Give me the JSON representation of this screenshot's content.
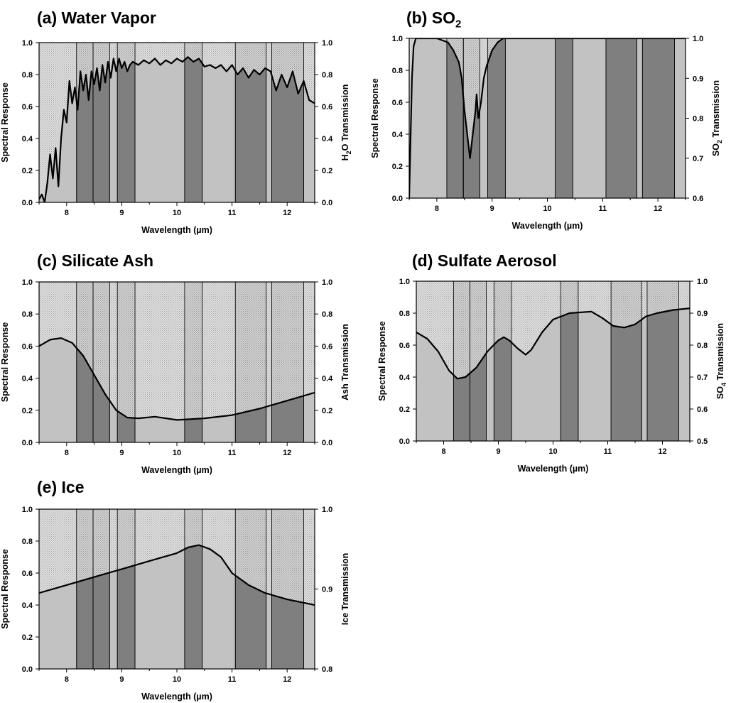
{
  "figure": {
    "bands_um": [
      [
        8.18,
        8.48
      ],
      [
        8.48,
        8.78
      ],
      [
        8.92,
        9.24
      ],
      [
        10.14,
        10.46
      ],
      [
        11.06,
        11.62
      ],
      [
        11.72,
        12.3
      ]
    ],
    "colors": {
      "band_light": "#c2c2c2",
      "band_dark": "#7f7f7f",
      "stipple": "#9a9a9a",
      "curve": "#000000"
    }
  },
  "chart_data": [
    {
      "type": "line",
      "letter": "(a)",
      "title_main": "Water Vapor",
      "title_sub": "",
      "xlabel": "Wavelength (µm)",
      "ylabel": "Spectral Response",
      "y2label_pre": "H",
      "y2label_sub": "2",
      "y2label_post": "O Transmission",
      "xlim": [
        7.5,
        12.5
      ],
      "xticks": [
        "8",
        "9",
        "10",
        "11",
        "12"
      ],
      "ylim": [
        0,
        1
      ],
      "yticks": [
        "0.0",
        "0.2",
        "0.4",
        "0.6",
        "0.8",
        "1.0"
      ],
      "y2lim": [
        0,
        1
      ],
      "y2ticks": [
        "0.0",
        "0.2",
        "0.4",
        "0.6",
        "0.8",
        "1.0"
      ],
      "series": [
        {
          "name": "H2O transmission",
          "x": [
            7.5,
            7.55,
            7.6,
            7.65,
            7.7,
            7.75,
            7.8,
            7.85,
            7.9,
            7.95,
            8.0,
            8.05,
            8.1,
            8.15,
            8.2,
            8.25,
            8.3,
            8.35,
            8.4,
            8.45,
            8.5,
            8.55,
            8.6,
            8.65,
            8.7,
            8.75,
            8.8,
            8.85,
            8.9,
            8.95,
            9.0,
            9.05,
            9.1,
            9.15,
            9.2,
            9.3,
            9.4,
            9.5,
            9.6,
            9.7,
            9.8,
            9.9,
            10.0,
            10.1,
            10.2,
            10.3,
            10.4,
            10.5,
            10.6,
            10.7,
            10.8,
            10.9,
            11.0,
            11.1,
            11.2,
            11.3,
            11.4,
            11.5,
            11.6,
            11.7,
            11.8,
            11.9,
            12.0,
            12.1,
            12.2,
            12.3,
            12.4,
            12.5
          ],
          "y": [
            0.02,
            0.05,
            0.0,
            0.12,
            0.3,
            0.15,
            0.34,
            0.1,
            0.4,
            0.58,
            0.5,
            0.76,
            0.62,
            0.72,
            0.58,
            0.82,
            0.7,
            0.8,
            0.64,
            0.82,
            0.74,
            0.84,
            0.7,
            0.86,
            0.75,
            0.88,
            0.78,
            0.9,
            0.82,
            0.9,
            0.84,
            0.88,
            0.82,
            0.86,
            0.88,
            0.86,
            0.89,
            0.87,
            0.9,
            0.86,
            0.89,
            0.87,
            0.9,
            0.88,
            0.91,
            0.88,
            0.9,
            0.85,
            0.86,
            0.84,
            0.86,
            0.82,
            0.86,
            0.8,
            0.84,
            0.78,
            0.83,
            0.8,
            0.84,
            0.82,
            0.7,
            0.8,
            0.72,
            0.82,
            0.68,
            0.76,
            0.64,
            0.62
          ]
        }
      ]
    },
    {
      "type": "line",
      "letter": "(b)",
      "title_main": "SO",
      "title_sub": "2",
      "xlabel": "Wavelength (µm)",
      "ylabel": "Spectral Response",
      "y2label_pre": "SO",
      "y2label_sub": "2",
      "y2label_post": " Transmission",
      "xlim": [
        7.5,
        12.5
      ],
      "xticks": [
        "8",
        "9",
        "10",
        "11",
        "12"
      ],
      "ylim": [
        0,
        1
      ],
      "yticks": [
        "0.0",
        "0.2",
        "0.4",
        "0.6",
        "0.8",
        "1.0"
      ],
      "y2lim": [
        0.6,
        1.0
      ],
      "y2ticks": [
        "0.6",
        "0.7",
        "0.8",
        "0.9",
        "1.0"
      ],
      "series": [
        {
          "name": "SO2 transmission",
          "x": [
            7.5,
            7.55,
            7.58,
            7.62,
            7.7,
            8.0,
            8.2,
            8.3,
            8.4,
            8.45,
            8.5,
            8.55,
            8.6,
            8.65,
            8.7,
            8.72,
            8.75,
            8.8,
            8.85,
            8.9,
            9.0,
            9.1,
            9.2,
            9.4,
            9.6,
            10.0,
            12.5
          ],
          "y": [
            0.6,
            0.9,
            0.98,
            1.0,
            1.0,
            1.0,
            0.99,
            0.97,
            0.94,
            0.9,
            0.82,
            0.76,
            0.7,
            0.76,
            0.82,
            0.86,
            0.8,
            0.84,
            0.9,
            0.93,
            0.97,
            0.99,
            1.0,
            1.0,
            1.0,
            1.0,
            1.0
          ]
        }
      ]
    },
    {
      "type": "line",
      "letter": "(c)",
      "title_main": "Silicate Ash",
      "title_sub": "",
      "xlabel": "Wavelength (µm)",
      "ylabel": "Spectral Response",
      "y2label_pre": "Ash Transmission",
      "y2label_sub": "",
      "y2label_post": "",
      "xlim": [
        7.5,
        12.5
      ],
      "xticks": [
        "8",
        "9",
        "10",
        "11",
        "12"
      ],
      "ylim": [
        0,
        1
      ],
      "yticks": [
        "0.0",
        "0.2",
        "0.4",
        "0.6",
        "0.8",
        "1.0"
      ],
      "y2lim": [
        0,
        1
      ],
      "y2ticks": [
        "0.0",
        "0.2",
        "0.4",
        "0.6",
        "0.8",
        "1.0"
      ],
      "series": [
        {
          "name": "Ash transmission",
          "x": [
            7.5,
            7.7,
            7.9,
            8.1,
            8.3,
            8.5,
            8.7,
            8.9,
            9.1,
            9.3,
            9.6,
            10.0,
            10.5,
            11.0,
            11.5,
            12.0,
            12.5
          ],
          "y": [
            0.6,
            0.64,
            0.65,
            0.62,
            0.54,
            0.42,
            0.3,
            0.2,
            0.155,
            0.15,
            0.16,
            0.14,
            0.15,
            0.17,
            0.21,
            0.26,
            0.31
          ]
        }
      ]
    },
    {
      "type": "line",
      "letter": "(d)",
      "title_main": "Sulfate Aerosol",
      "title_sub": "",
      "xlabel": "Wavelength (µm)",
      "ylabel": "Spectral Response",
      "y2label_pre": "SO",
      "y2label_sub": "4",
      "y2label_post": " Transmission",
      "xlim": [
        7.5,
        12.5
      ],
      "xticks": [
        "8",
        "9",
        "10",
        "11",
        "12"
      ],
      "ylim": [
        0,
        1
      ],
      "yticks": [
        "0.0",
        "0.2",
        "0.4",
        "0.6",
        "0.8",
        "1.0"
      ],
      "y2lim": [
        0.5,
        1.0
      ],
      "y2ticks": [
        "0.5",
        "0.6",
        "0.7",
        "0.8",
        "0.9",
        "1.0"
      ],
      "series": [
        {
          "name": "SO4 transmission",
          "x": [
            7.5,
            7.7,
            7.9,
            8.1,
            8.25,
            8.4,
            8.6,
            8.8,
            9.0,
            9.1,
            9.2,
            9.35,
            9.5,
            9.6,
            9.8,
            10.0,
            10.3,
            10.7,
            10.9,
            11.1,
            11.3,
            11.5,
            11.7,
            11.9,
            12.2,
            12.5
          ],
          "y": [
            0.84,
            0.82,
            0.78,
            0.72,
            0.695,
            0.7,
            0.73,
            0.78,
            0.815,
            0.825,
            0.815,
            0.79,
            0.77,
            0.785,
            0.84,
            0.88,
            0.9,
            0.905,
            0.885,
            0.86,
            0.855,
            0.865,
            0.89,
            0.9,
            0.91,
            0.915
          ]
        }
      ]
    },
    {
      "type": "line",
      "letter": "(e)",
      "title_main": "Ice",
      "title_sub": "",
      "xlabel": "Wavelength (µm)",
      "ylabel": "Spectral Response",
      "y2label_pre": "Ice Transmission",
      "y2label_sub": "",
      "y2label_post": "",
      "xlim": [
        7.5,
        12.5
      ],
      "xticks": [
        "8",
        "9",
        "10",
        "11",
        "12"
      ],
      "ylim": [
        0,
        1
      ],
      "yticks": [
        "0.0",
        "0.2",
        "0.4",
        "0.6",
        "0.8",
        "1.0"
      ],
      "y2lim": [
        0.8,
        1.0
      ],
      "y2ticks": [
        "0.8",
        "0.9",
        "1.0"
      ],
      "series": [
        {
          "name": "Ice transmission",
          "x": [
            7.5,
            8.0,
            8.5,
            9.0,
            9.5,
            10.0,
            10.2,
            10.4,
            10.6,
            10.8,
            11.0,
            11.3,
            11.6,
            12.0,
            12.5
          ],
          "y": [
            0.895,
            0.905,
            0.915,
            0.925,
            0.935,
            0.945,
            0.952,
            0.955,
            0.95,
            0.94,
            0.92,
            0.905,
            0.895,
            0.887,
            0.88
          ]
        }
      ]
    }
  ]
}
